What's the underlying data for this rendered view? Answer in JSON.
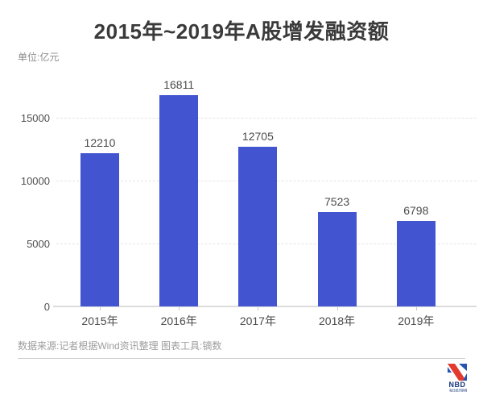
{
  "header": {
    "title": "2015年~2019年A股增发融资额",
    "unit_label": "单位:亿元"
  },
  "chart_data": {
    "type": "bar",
    "title": "2015年~2019年A股增发融资额",
    "unit": "亿元",
    "categories": [
      "2015年",
      "2016年",
      "2017年",
      "2018年",
      "2019年"
    ],
    "values": [
      12210,
      16811,
      12705,
      7523,
      6798
    ],
    "yticks": [
      0,
      5000,
      10000,
      15000
    ],
    "ylim": [
      0,
      17950
    ],
    "xlabel": "",
    "ylabel": "单位:亿元",
    "grid": "horizontal-dashed",
    "legend": "none",
    "value_labels_shown": true,
    "bar_color": "#4254cf",
    "text_color": "#4a4a4a"
  },
  "footer": {
    "source_note": "数据来源:记者根据Wind资讯整理 图表工具:镝数"
  },
  "logo": {
    "text": "NBD",
    "subtext": "每日经济新闻",
    "red": "#e23a2e",
    "blue": "#2653b4",
    "navy": "#17357d"
  }
}
